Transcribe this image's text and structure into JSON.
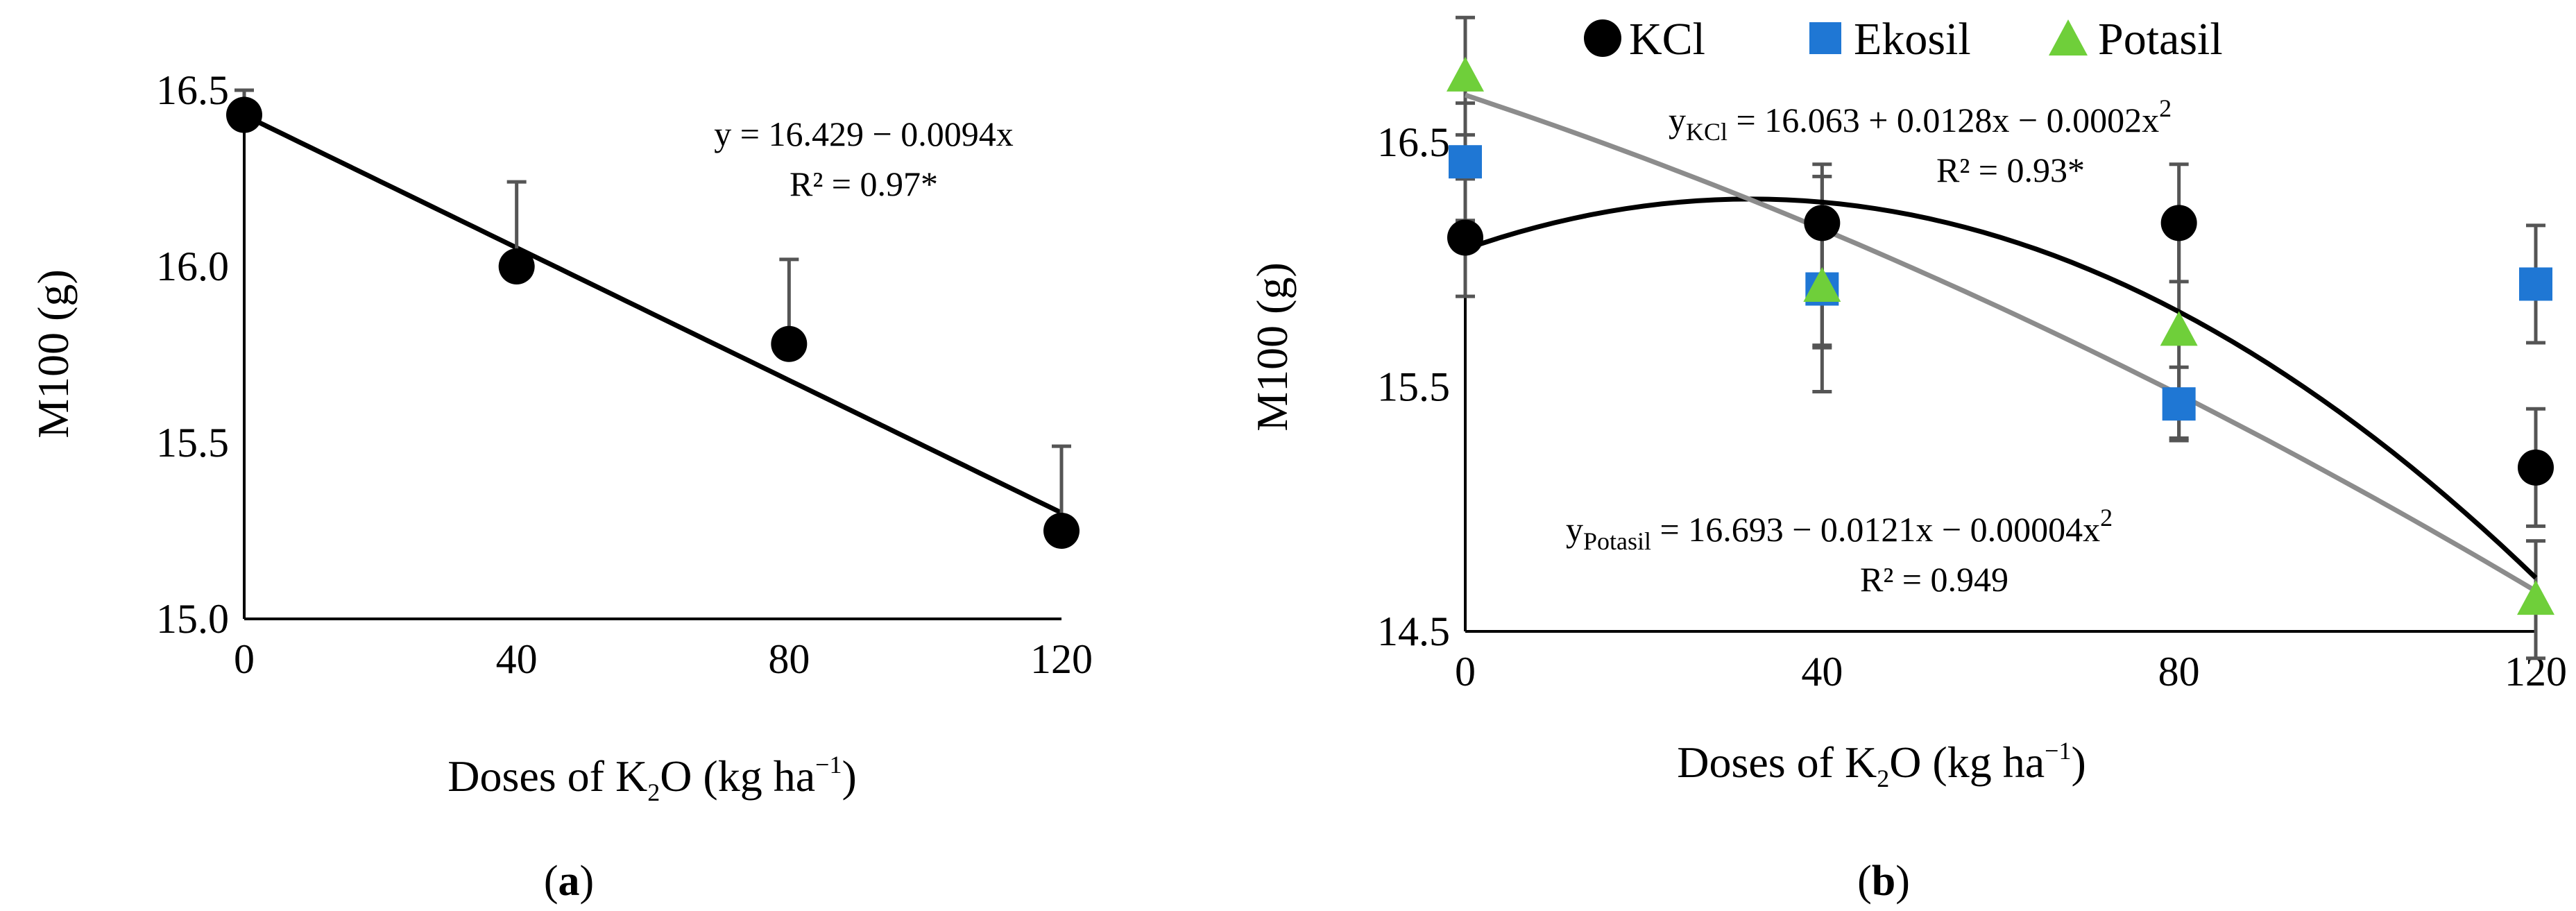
{
  "chart_data": [
    {
      "type": "scatter",
      "panel_label_prefix": "(",
      "panel_label": "a",
      "panel_label_suffix": ")",
      "ylabel": "M100 (g)",
      "xlabel": {
        "pre": "Doses of K",
        "sub": "2",
        "mid": "O (kg ha",
        "sup": "−1",
        "post": ")"
      },
      "xticks": [
        "0",
        "40",
        "80",
        "120"
      ],
      "xticks_values": [
        0,
        40,
        80,
        120
      ],
      "yticks": [
        "15.0",
        "15.5",
        "16.0",
        "16.5"
      ],
      "yticks_values": [
        15.0,
        15.5,
        16.0,
        16.5
      ],
      "xlim": [
        0,
        120
      ],
      "ylim": [
        15.0,
        16.5
      ],
      "series": [
        {
          "name": "M100",
          "marker": "circle",
          "color": "#000000",
          "x": [
            0,
            40,
            80,
            120
          ],
          "y": [
            16.43,
            16.0,
            15.78,
            15.25
          ],
          "error_top": [
            16.5,
            16.24,
            16.02,
            15.49
          ]
        }
      ],
      "fits": [
        {
          "kind": "linear",
          "a": 16.429,
          "b": -0.0094,
          "c": 0,
          "x_range": [
            0,
            120
          ],
          "color": "#000000"
        }
      ],
      "annotations": [
        {
          "text": "y = 16.429 − 0.0094x"
        },
        {
          "text": "R² = 0.97*"
        }
      ]
    },
    {
      "type": "scatter",
      "panel_label_prefix": "(",
      "panel_label": "b",
      "panel_label_suffix": ")",
      "ylabel": "M100 (g)",
      "xlabel": {
        "pre": "Doses of K",
        "sub": "2",
        "mid": "O (kg ha",
        "sup": "−1",
        "post": ")"
      },
      "xticks": [
        "0",
        "40",
        "80",
        "120"
      ],
      "xticks_values": [
        0,
        40,
        80,
        120
      ],
      "yticks": [
        "14.5",
        "15.5",
        "16.5"
      ],
      "yticks_values": [
        14.5,
        15.5,
        16.5
      ],
      "xlim": [
        0,
        120
      ],
      "ylim": [
        14.5,
        17.0
      ],
      "legend": {
        "placement": "top",
        "entries": [
          "KCl",
          "Ekosil",
          "Potasil"
        ]
      },
      "series": [
        {
          "name": "KCl",
          "marker": "circle",
          "color": "#000000",
          "x": [
            0,
            40,
            80,
            120
          ],
          "y": [
            16.11,
            16.17,
            16.17,
            15.17
          ],
          "err_low": [
            15.87,
            15.48,
            15.93,
            14.93
          ],
          "err_high": [
            16.35,
            16.41,
            16.41,
            15.41
          ]
        },
        {
          "name": "Ekosil",
          "marker": "square",
          "color": "#1f77d4",
          "x": [
            0,
            40,
            80,
            120
          ],
          "y": [
            16.42,
            15.9,
            15.43,
            15.92
          ],
          "err_low": [
            16.18,
            15.66,
            15.28,
            15.68
          ],
          "err_high": [
            16.66,
            16.36,
            15.58,
            16.16
          ]
        },
        {
          "name": "Potasil",
          "marker": "triangle",
          "color": "#6fcf3a",
          "x": [
            0,
            40,
            80,
            120
          ],
          "y": [
            16.77,
            15.91,
            15.73,
            14.63
          ],
          "err_low": [
            16.53,
            15.67,
            15.29,
            14.39
          ],
          "err_high": [
            17.01,
            16.15,
            16.17,
            14.87
          ]
        }
      ],
      "fits": [
        {
          "kind": "quadratic",
          "name": "KCl",
          "a": 16.063,
          "b": 0.0128,
          "c": -0.0002,
          "x_range": [
            0,
            120
          ],
          "color": "#000000"
        },
        {
          "kind": "quadratic",
          "name": "Potasil",
          "a": 16.693,
          "b": -0.0121,
          "c": -4e-05,
          "x_range": [
            0,
            120
          ],
          "color": "#8c8c8c"
        }
      ],
      "annotations": {
        "kcl": {
          "pre": "y",
          "sub": "KCl",
          "post": " = 16.063 + 0.0128x  − 0.0002x",
          "sup": "2",
          "r2": "R² = 0.93*"
        },
        "potasil": {
          "pre": "y",
          "sub": "Potasil",
          "post": " = 16.693 − 0.0121x − 0.00004x",
          "sup": "2",
          "r2": "R² = 0.949"
        }
      }
    }
  ]
}
